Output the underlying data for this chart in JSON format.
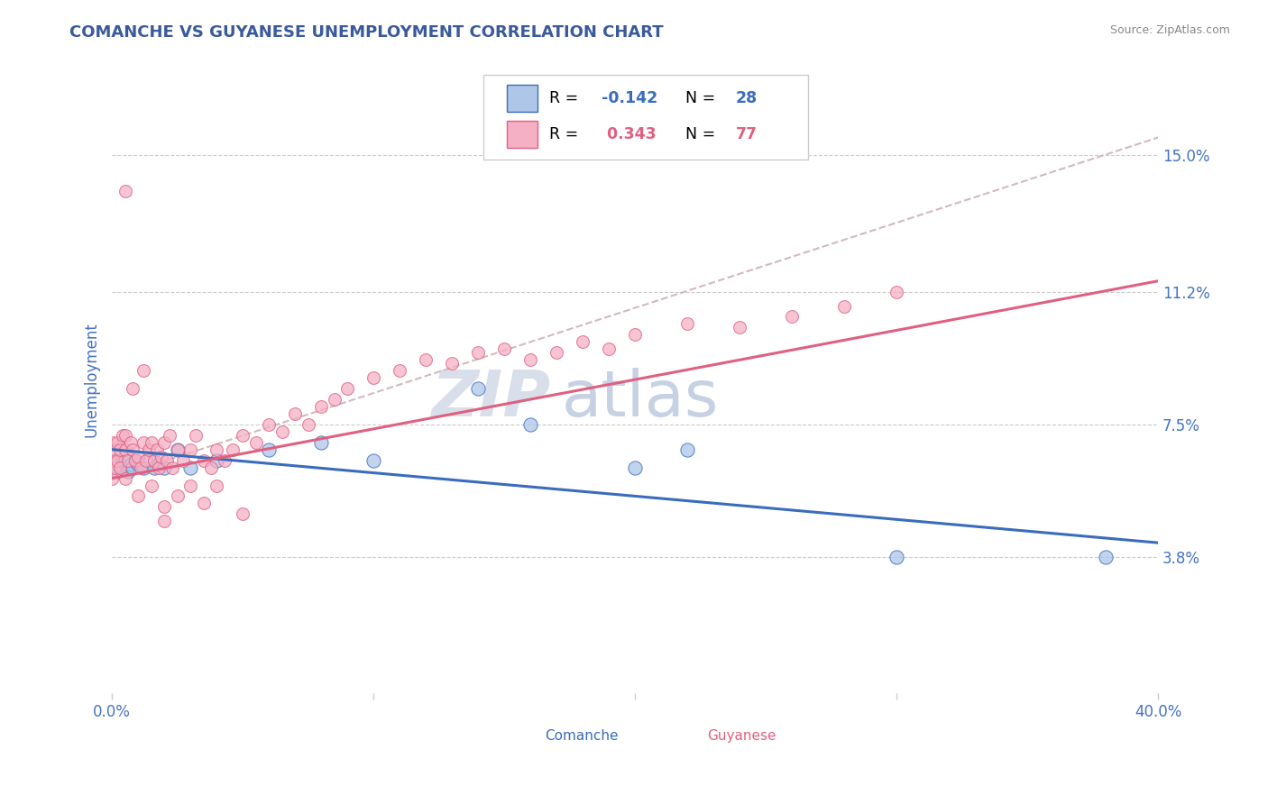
{
  "title": "COMANCHE VS GUYANESE UNEMPLOYMENT CORRELATION CHART",
  "source_text": "Source: ZipAtlas.com",
  "ylabel": "Unemployment",
  "xlim": [
    0.0,
    0.4
  ],
  "ylim": [
    0.0,
    0.175
  ],
  "xticks": [
    0.0,
    0.1,
    0.2,
    0.3,
    0.4
  ],
  "xtick_labels": [
    "0.0%",
    "",
    "",
    "",
    "40.0%"
  ],
  "yticks": [
    0.038,
    0.075,
    0.112,
    0.15
  ],
  "ytick_labels": [
    "3.8%",
    "7.5%",
    "11.2%",
    "15.0%"
  ],
  "comanche_color": "#aec6e8",
  "guyanese_color": "#f5b0c5",
  "trend_comanche_color": "#3a6cbd",
  "trend_guyanese_color": "#e06080",
  "ref_line_color": "#d4b8c0",
  "title_color": "#3a5a9c",
  "tick_color": "#4472c4",
  "legend_R_comanche": "-0.142",
  "legend_N_comanche": "28",
  "legend_R_guyanese": "0.343",
  "legend_N_guyanese": "77",
  "comanche_x": [
    0.0,
    0.001,
    0.002,
    0.003,
    0.004,
    0.005,
    0.006,
    0.007,
    0.008,
    0.009,
    0.01,
    0.012,
    0.014,
    0.016,
    0.018,
    0.02,
    0.025,
    0.03,
    0.04,
    0.06,
    0.08,
    0.1,
    0.14,
    0.16,
    0.2,
    0.22,
    0.3,
    0.38
  ],
  "comanche_y": [
    0.063,
    0.065,
    0.062,
    0.064,
    0.063,
    0.065,
    0.062,
    0.064,
    0.063,
    0.065,
    0.064,
    0.063,
    0.065,
    0.063,
    0.064,
    0.063,
    0.068,
    0.063,
    0.065,
    0.068,
    0.07,
    0.065,
    0.085,
    0.075,
    0.063,
    0.068,
    0.038,
    0.038
  ],
  "guyanese_x": [
    0.0,
    0.0,
    0.0,
    0.001,
    0.001,
    0.002,
    0.002,
    0.003,
    0.003,
    0.004,
    0.005,
    0.005,
    0.006,
    0.007,
    0.008,
    0.009,
    0.01,
    0.011,
    0.012,
    0.013,
    0.014,
    0.015,
    0.016,
    0.017,
    0.018,
    0.019,
    0.02,
    0.021,
    0.022,
    0.023,
    0.025,
    0.027,
    0.03,
    0.032,
    0.035,
    0.038,
    0.04,
    0.043,
    0.046,
    0.05,
    0.055,
    0.06,
    0.065,
    0.07,
    0.075,
    0.08,
    0.085,
    0.09,
    0.1,
    0.11,
    0.12,
    0.13,
    0.14,
    0.15,
    0.16,
    0.17,
    0.18,
    0.19,
    0.2,
    0.22,
    0.24,
    0.26,
    0.28,
    0.3,
    0.005,
    0.01,
    0.015,
    0.02,
    0.025,
    0.03,
    0.035,
    0.04,
    0.05,
    0.005,
    0.008,
    0.012,
    0.02
  ],
  "guyanese_y": [
    0.06,
    0.065,
    0.07,
    0.063,
    0.068,
    0.065,
    0.07,
    0.063,
    0.068,
    0.072,
    0.068,
    0.072,
    0.065,
    0.07,
    0.068,
    0.065,
    0.066,
    0.063,
    0.07,
    0.065,
    0.068,
    0.07,
    0.065,
    0.068,
    0.063,
    0.066,
    0.07,
    0.065,
    0.072,
    0.063,
    0.068,
    0.065,
    0.068,
    0.072,
    0.065,
    0.063,
    0.068,
    0.065,
    0.068,
    0.072,
    0.07,
    0.075,
    0.073,
    0.078,
    0.075,
    0.08,
    0.082,
    0.085,
    0.088,
    0.09,
    0.093,
    0.092,
    0.095,
    0.096,
    0.093,
    0.095,
    0.098,
    0.096,
    0.1,
    0.103,
    0.102,
    0.105,
    0.108,
    0.112,
    0.06,
    0.055,
    0.058,
    0.052,
    0.055,
    0.058,
    0.053,
    0.058,
    0.05,
    0.14,
    0.085,
    0.09,
    0.048
  ],
  "comanche_trend": [
    0.0,
    0.4,
    0.068,
    0.042
  ],
  "guyanese_trend": [
    0.0,
    0.4,
    0.06,
    0.115
  ],
  "ref_line": [
    0.0,
    0.4,
    0.06,
    0.155
  ],
  "watermark_text": "ZIP",
  "watermark_text2": "atlas",
  "watermark_color1": "#d0d8e8",
  "watermark_color2": "#c8d8e8"
}
